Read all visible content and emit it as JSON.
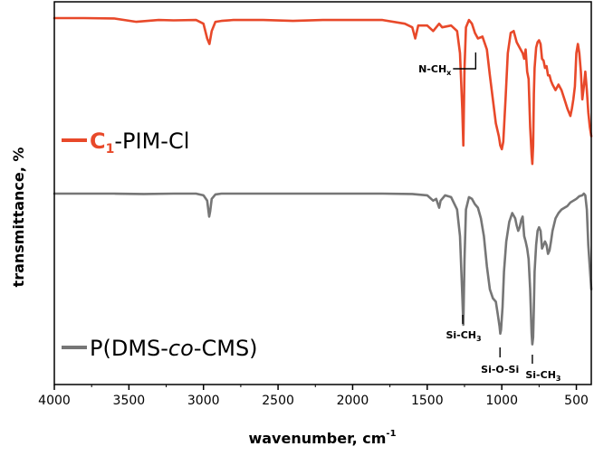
{
  "chart_data": {
    "type": "line",
    "xlabel": "wavenumber, cm",
    "xlabel_sup": "-1",
    "ylabel": "transmittance, %",
    "xlim": [
      4000,
      400
    ],
    "x_reversed": true,
    "x_ticks": [
      4000,
      3500,
      3000,
      2500,
      2000,
      1500,
      1000,
      500
    ],
    "y_ticks_shown": false,
    "grid": false,
    "legend_placement": "left, beside each curve",
    "series": [
      {
        "name_main": "C",
        "name_sub": "1",
        "name_rest": "-PIM-Cl",
        "color": "#e8492a",
        "x": [
          4000,
          3800,
          3600,
          3450,
          3300,
          3200,
          3050,
          3000,
          2975,
          2960,
          2945,
          2920,
          2880,
          2800,
          2600,
          2400,
          2200,
          2000,
          1800,
          1650,
          1600,
          1580,
          1560,
          1500,
          1460,
          1420,
          1400,
          1340,
          1300,
          1280,
          1265,
          1258,
          1250,
          1240,
          1220,
          1200,
          1180,
          1160,
          1130,
          1100,
          1080,
          1060,
          1040,
          1020,
          1010,
          1000,
          990,
          975,
          960,
          940,
          920,
          900,
          880,
          860,
          850,
          840,
          830,
          820,
          810,
          800,
          795,
          790,
          785,
          780,
          770,
          760,
          750,
          740,
          730,
          720,
          710,
          700,
          690,
          680,
          670,
          660,
          640,
          620,
          600,
          580,
          560,
          540,
          530,
          520,
          510,
          500,
          490,
          480,
          470,
          460,
          450,
          440,
          430,
          420,
          410,
          400
        ],
        "y": [
          99,
          99,
          98.8,
          97,
          98,
          97.8,
          98,
          96,
          88,
          85,
          92,
          97,
          97.5,
          98,
          98,
          97.5,
          98,
          98,
          98,
          96,
          94,
          88,
          95,
          95,
          92,
          96,
          94,
          95,
          92,
          80,
          50,
          30,
          72,
          94,
          98,
          96,
          91,
          88,
          89,
          82,
          68,
          55,
          42,
          35,
          30,
          28,
          32,
          55,
          80,
          91,
          92,
          86,
          83,
          80,
          77,
          82,
          70,
          66,
          40,
          25,
          20,
          30,
          58,
          72,
          83,
          86,
          87,
          85,
          77,
          76,
          72,
          73,
          68,
          68,
          65,
          63,
          60,
          63,
          60,
          55,
          50,
          46,
          50,
          55,
          62,
          80,
          85,
          80,
          70,
          55,
          62,
          70,
          60,
          48,
          40,
          35
        ]
      },
      {
        "name_main": "P(DMS-",
        "name_italic": "co",
        "name_rest": "-CMS)",
        "color": "#767676",
        "x": [
          4000,
          3800,
          3600,
          3400,
          3200,
          3050,
          3000,
          2975,
          2962,
          2955,
          2945,
          2920,
          2880,
          2800,
          2600,
          2400,
          2200,
          2000,
          1800,
          1600,
          1500,
          1460,
          1440,
          1420,
          1410,
          1400,
          1380,
          1340,
          1300,
          1280,
          1265,
          1258,
          1250,
          1240,
          1220,
          1200,
          1180,
          1160,
          1140,
          1120,
          1100,
          1080,
          1060,
          1040,
          1025,
          1015,
          1010,
          1005,
          995,
          985,
          970,
          950,
          930,
          910,
          900,
          890,
          880,
          870,
          860,
          850,
          840,
          830,
          820,
          810,
          800,
          795,
          790,
          785,
          780,
          770,
          760,
          750,
          740,
          730,
          720,
          710,
          700,
          690,
          680,
          670,
          660,
          640,
          620,
          600,
          580,
          560,
          540,
          520,
          500,
          480,
          460,
          450,
          440,
          430,
          420,
          400
        ],
        "y": [
          99,
          99,
          99,
          98.8,
          99,
          99,
          98,
          95,
          86,
          89,
          96,
          98.5,
          99,
          99,
          99,
          99,
          99,
          99,
          99,
          98.8,
          98,
          95,
          96,
          91,
          95,
          96,
          98,
          97,
          90,
          75,
          42,
          25,
          62,
          90,
          97,
          96,
          93,
          91,
          85,
          75,
          58,
          45,
          40,
          38,
          30,
          24,
          20,
          22,
          35,
          55,
          72,
          83,
          88,
          85,
          81,
          78,
          80,
          84,
          86,
          75,
          72,
          68,
          62,
          45,
          20,
          14,
          18,
          35,
          55,
          70,
          78,
          80,
          78,
          68,
          70,
          72,
          70,
          65,
          67,
          72,
          78,
          85,
          88,
          90,
          91,
          92,
          94,
          95,
          96,
          97.5,
          98,
          99,
          98,
          90,
          70,
          45
        ]
      }
    ],
    "annotations": [
      {
        "label_main": "N-CH",
        "label_sub": "x",
        "x": 1175
      },
      {
        "label_main": "Si-CH",
        "label_sub": "3",
        "x": 1262
      },
      {
        "label_main": "Si-O-Si",
        "label_sub": "",
        "x": 1012
      },
      {
        "label_main": "Si-CH",
        "label_sub": "3",
        "x": 795
      }
    ]
  }
}
